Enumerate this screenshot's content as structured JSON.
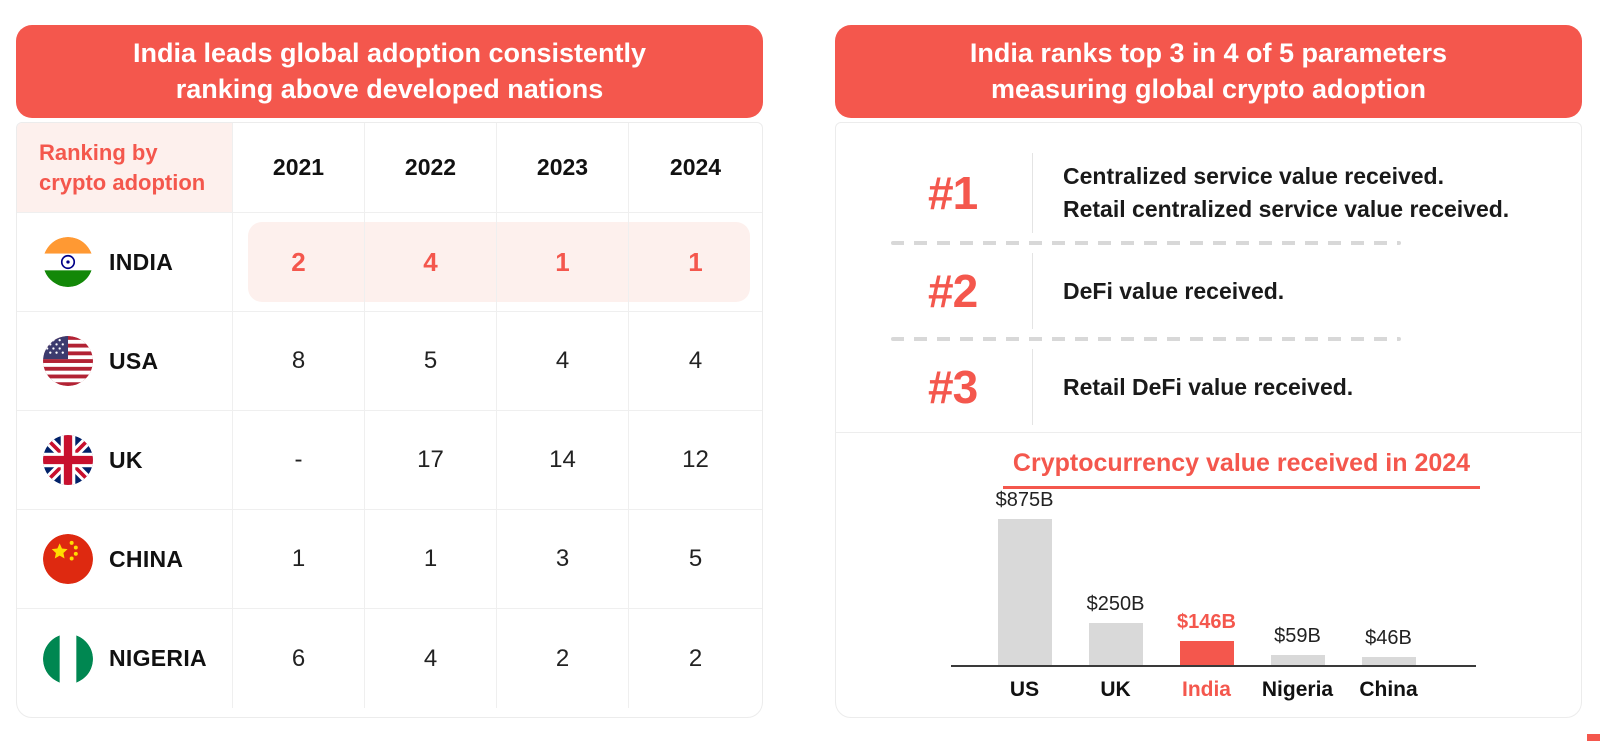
{
  "accent_color": "#F4574D",
  "highlight_bg": "#FDF0ED",
  "bar_gray": "#D9D9D9",
  "left_panel": {
    "title_line1": "India leads global adoption consistently",
    "title_line2": "ranking above developed nations",
    "table": {
      "corner_label_line1": "Ranking by",
      "corner_label_line2": "crypto adoption",
      "years": [
        "2021",
        "2022",
        "2023",
        "2024"
      ],
      "rows": [
        {
          "country": "INDIA",
          "flag": "india-flag",
          "highlighted": true,
          "values": [
            "2",
            "4",
            "1",
            "1"
          ]
        },
        {
          "country": "USA",
          "flag": "usa-flag",
          "highlighted": false,
          "values": [
            "8",
            "5",
            "4",
            "4"
          ]
        },
        {
          "country": "UK",
          "flag": "uk-flag",
          "highlighted": false,
          "values": [
            "-",
            "17",
            "14",
            "12"
          ]
        },
        {
          "country": "CHINA",
          "flag": "china-flag",
          "highlighted": false,
          "values": [
            "1",
            "1",
            "3",
            "5"
          ]
        },
        {
          "country": "NIGERIA",
          "flag": "nigeria-flag",
          "highlighted": false,
          "values": [
            "6",
            "4",
            "2",
            "2"
          ]
        }
      ]
    }
  },
  "right_panel": {
    "title_line1": "India ranks top 3 in 4 of 5 parameters",
    "title_line2": "measuring global crypto adoption",
    "rankings": [
      {
        "rank": "#1",
        "line1": "Centralized service value received.",
        "line2": "Retail centralized service value received."
      },
      {
        "rank": "#2",
        "line1": "DeFi value received."
      },
      {
        "rank": "#3",
        "line1": "Retail DeFi value received."
      }
    ]
  },
  "chart_data": {
    "type": "bar",
    "title": "Cryptocurrency value received in 2024",
    "categories": [
      "US",
      "UK",
      "India",
      "Nigeria",
      "China"
    ],
    "values": [
      875,
      250,
      146,
      59,
      46
    ],
    "value_labels": [
      "$875B",
      "$250B",
      "$146B",
      "$59B",
      "$46B"
    ],
    "unit": "USD billions",
    "highlight_index": 2,
    "highlight_color": "#F4574D",
    "bar_color": "#D9D9D9",
    "ylim": [
      0,
      875
    ],
    "grid": false,
    "legend": false
  }
}
